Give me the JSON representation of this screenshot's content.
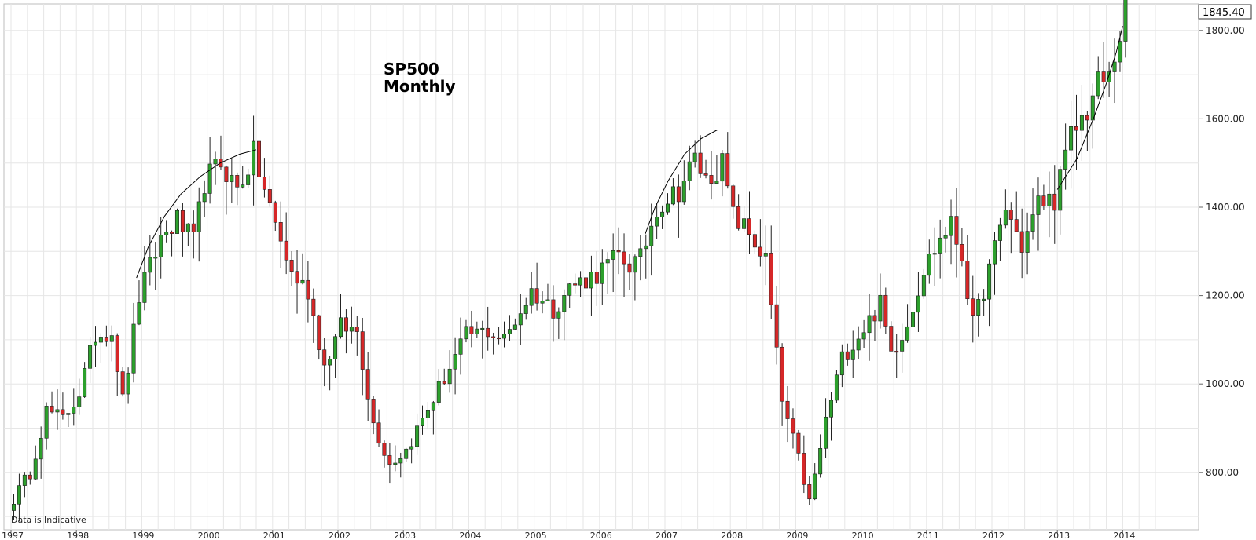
{
  "chart_data": {
    "type": "candlestick",
    "title": "SP500",
    "subtitle": "Monthly",
    "note": "Data is Indicative",
    "last_price_label": "1845.40",
    "y_ticks": [
      800,
      1000,
      1200,
      1400,
      1600,
      1800
    ],
    "y_tick_labels": [
      "800.00",
      "1000.00",
      "1200.00",
      "1400.00",
      "1600.00",
      "1800.00"
    ],
    "x_tick_labels": [
      "1997",
      "1998",
      "1999",
      "2000",
      "2001",
      "2002",
      "2003",
      "2004",
      "2005",
      "2006",
      "2007",
      "2008",
      "2009",
      "2010",
      "2011",
      "2012",
      "2013",
      "2014"
    ],
    "x_range": [
      1997,
      2014.6
    ],
    "ylim": [
      670,
      1860
    ],
    "grid": true,
    "up_color": "#2ca02c",
    "down_color": "#d62728",
    "anchors_close": [
      [
        1997.0,
        740
      ],
      [
        1997.25,
        800
      ],
      [
        1997.5,
        940
      ],
      [
        1997.75,
        920
      ],
      [
        1998.0,
        980
      ],
      [
        1998.25,
        1110
      ],
      [
        1998.5,
        1120
      ],
      [
        1998.67,
        960
      ],
      [
        1998.92,
        1200
      ],
      [
        1999.25,
        1330
      ],
      [
        1999.5,
        1370
      ],
      [
        1999.75,
        1320
      ],
      [
        1999.92,
        1460
      ],
      [
        2000.17,
        1500
      ],
      [
        2000.42,
        1440
      ],
      [
        2000.67,
        1520
      ],
      [
        2000.83,
        1440
      ],
      [
        2001.0,
        1360
      ],
      [
        2001.25,
        1250
      ],
      [
        2001.5,
        1210
      ],
      [
        2001.75,
        1040
      ],
      [
        2002.0,
        1130
      ],
      [
        2002.25,
        1120
      ],
      [
        2002.5,
        910
      ],
      [
        2002.75,
        820
      ],
      [
        2003.0,
        850
      ],
      [
        2003.25,
        920
      ],
      [
        2003.5,
        990
      ],
      [
        2003.92,
        1110
      ],
      [
        2004.25,
        1120
      ],
      [
        2004.5,
        1100
      ],
      [
        2004.92,
        1210
      ],
      [
        2005.25,
        1170
      ],
      [
        2005.5,
        1220
      ],
      [
        2005.92,
        1250
      ],
      [
        2006.25,
        1290
      ],
      [
        2006.42,
        1270
      ],
      [
        2006.58,
        1280
      ],
      [
        2006.83,
        1400
      ],
      [
        2007.17,
        1440
      ],
      [
        2007.42,
        1510
      ],
      [
        2007.58,
        1460
      ],
      [
        2007.83,
        1500
      ],
      [
        2008.0,
        1380
      ],
      [
        2008.25,
        1340
      ],
      [
        2008.5,
        1280
      ],
      [
        2008.75,
        960
      ],
      [
        2009.0,
        830
      ],
      [
        2009.17,
        730
      ],
      [
        2009.42,
        920
      ],
      [
        2009.67,
        1060
      ],
      [
        2009.92,
        1110
      ],
      [
        2010.25,
        1180
      ],
      [
        2010.42,
        1070
      ],
      [
        2010.67,
        1140
      ],
      [
        2010.92,
        1260
      ],
      [
        2011.17,
        1330
      ],
      [
        2011.33,
        1360
      ],
      [
        2011.5,
        1290
      ],
      [
        2011.67,
        1130
      ],
      [
        2011.92,
        1260
      ],
      [
        2012.17,
        1400
      ],
      [
        2012.42,
        1310
      ],
      [
        2012.67,
        1410
      ],
      [
        2012.92,
        1420
      ],
      [
        2013.17,
        1560
      ],
      [
        2013.42,
        1620
      ],
      [
        2013.58,
        1680
      ],
      [
        2013.75,
        1690
      ],
      [
        2014.0,
        1845
      ]
    ]
  }
}
